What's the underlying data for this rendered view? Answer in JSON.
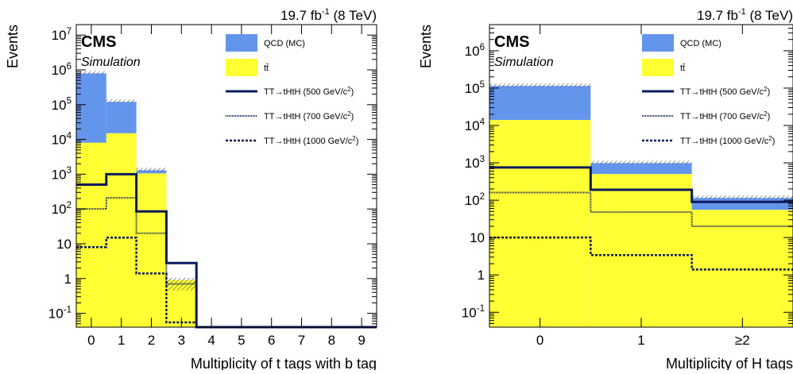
{
  "chart_data": [
    {
      "type": "bar",
      "stacked": true,
      "log_scale": true,
      "lumi_label": "19.7 fb",
      "lumi_sup": "-1",
      "lumi_energy": " (8 TeV)",
      "experiment": "CMS",
      "subtitle": "Simulation",
      "xlabel": "Multiplicity of t tags with b tag",
      "ylabel": "Events",
      "ylim": [
        0.04,
        20000000
      ],
      "yticks": [
        {
          "v": 0.1,
          "base": "10",
          "sup": "-1"
        },
        {
          "v": 1,
          "base": "1",
          "sup": ""
        },
        {
          "v": 10,
          "base": "10",
          "sup": ""
        },
        {
          "v": 100,
          "base": "10",
          "sup": "2"
        },
        {
          "v": 1000,
          "base": "10",
          "sup": "3"
        },
        {
          "v": 10000,
          "base": "10",
          "sup": "4"
        },
        {
          "v": 100000,
          "base": "10",
          "sup": "5"
        },
        {
          "v": 1000000,
          "base": "10",
          "sup": "6"
        },
        {
          "v": 10000000,
          "base": "10",
          "sup": "7"
        }
      ],
      "categories": [
        "0",
        "1",
        "2",
        "3",
        "4",
        "5",
        "6",
        "7",
        "8",
        "9"
      ],
      "series": [
        {
          "name": "QCD (MC)",
          "color": "#6495ed",
          "values": [
            780000,
            105000,
            250,
            0,
            0,
            0,
            0,
            0,
            0,
            0
          ]
        },
        {
          "name": "tt̄",
          "color": "#ffff33",
          "values": [
            8000,
            15000,
            1050,
            0.9,
            0,
            0,
            0,
            0,
            0,
            0
          ]
        }
      ],
      "signals": [
        {
          "name": "TT→tHtH (500 GeV/c²)",
          "label": "TT→tHtH (500 GeV/c",
          "label_sup": "2",
          "label_end": ")",
          "style": "solid",
          "color": "#0b1a5c",
          "values": [
            500,
            1000,
            85,
            2.8,
            0.04,
            0.04,
            0.04,
            0.04,
            0.04,
            0.04
          ]
        },
        {
          "name": "TT→tHtH (700 GeV/c²)",
          "label": "TT→tHtH (700 GeV/c",
          "label_sup": "2",
          "label_end": ")",
          "style": "dotted",
          "color": "#0b1a5c",
          "values": [
            100,
            210,
            20,
            0.7,
            0.04,
            0.04,
            0.04,
            0.04,
            0.04,
            0.04
          ]
        },
        {
          "name": "TT→tHtH (1000 GeV/c²)",
          "label": "TT→tHtH (1000 GeV/c",
          "label_sup": "2",
          "label_end": ")",
          "style": "dashed",
          "color": "#0b1a5c",
          "values": [
            8,
            15,
            1.4,
            0.055,
            0.04,
            0.04,
            0.04,
            0.04,
            0.04,
            0.04
          ]
        }
      ],
      "legend_position": "top-right"
    },
    {
      "type": "bar",
      "stacked": true,
      "log_scale": true,
      "lumi_label": "19.7 fb",
      "lumi_sup": "-1",
      "lumi_energy": " (8 TeV)",
      "experiment": "CMS",
      "subtitle": "Simulation",
      "xlabel": "Multiplicity of H tags",
      "ylabel": "Events",
      "ylim": [
        0.04,
        5000000
      ],
      "yticks": [
        {
          "v": 0.1,
          "base": "10",
          "sup": "-1"
        },
        {
          "v": 1,
          "base": "1",
          "sup": ""
        },
        {
          "v": 10,
          "base": "10",
          "sup": ""
        },
        {
          "v": 100,
          "base": "10",
          "sup": "2"
        },
        {
          "v": 1000,
          "base": "10",
          "sup": "3"
        },
        {
          "v": 10000,
          "base": "10",
          "sup": "4"
        },
        {
          "v": 100000,
          "base": "10",
          "sup": "5"
        },
        {
          "v": 1000000,
          "base": "10",
          "sup": "6"
        }
      ],
      "categories": [
        "0",
        "1",
        "≥2"
      ],
      "series": [
        {
          "name": "QCD (MC)",
          "color": "#6495ed",
          "values": [
            100000,
            480,
            60
          ]
        },
        {
          "name": "tt̄",
          "color": "#ffff33",
          "values": [
            14000,
            500,
            55
          ]
        }
      ],
      "signals": [
        {
          "name": "TT→tHtH (500 GeV/c²)",
          "label": "TT→tHtH (500 GeV/c",
          "label_sup": "2",
          "label_end": ")",
          "style": "solid",
          "color": "#0b1a5c",
          "values": [
            750,
            190,
            90
          ]
        },
        {
          "name": "TT→tHtH (700 GeV/c²)",
          "label": "TT→tHtH (700 GeV/c",
          "label_sup": "2",
          "label_end": ")",
          "style": "dotted",
          "color": "#0b1a5c",
          "values": [
            160,
            48,
            20
          ]
        },
        {
          "name": "TT→tHtH (1000 GeV/c²)",
          "label": "TT→tHtH (1000 GeV/c",
          "label_sup": "2",
          "label_end": ")",
          "style": "dashed",
          "color": "#0b1a5c",
          "values": [
            10,
            3.4,
            1.4
          ]
        }
      ],
      "legend_position": "top-right"
    }
  ]
}
